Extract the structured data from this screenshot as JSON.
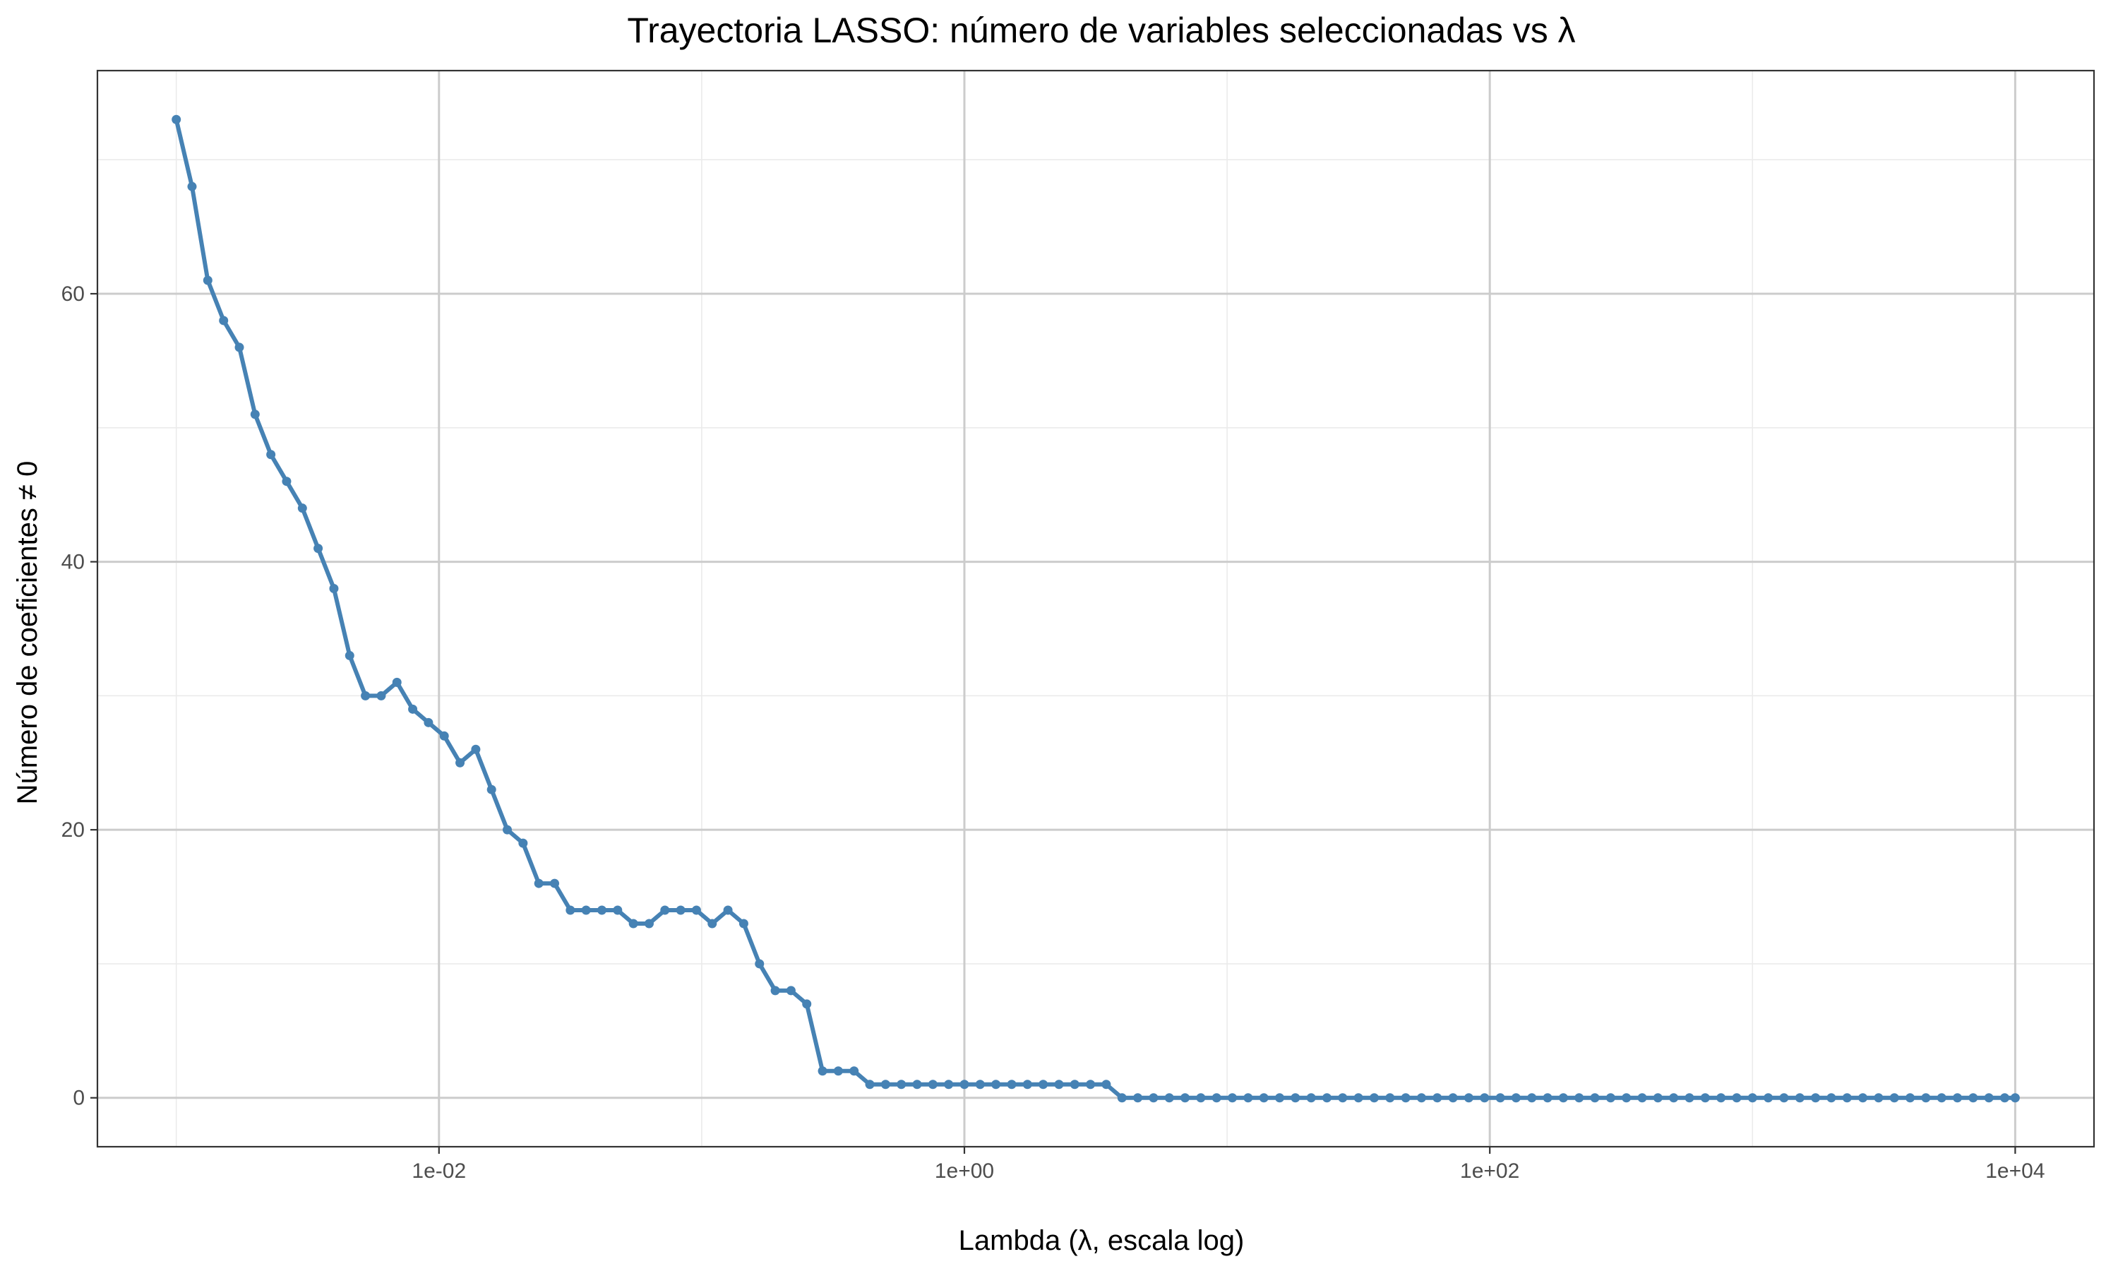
{
  "chart_data": {
    "type": "line",
    "title": "Trayectoria LASSO: número de variables seleccionadas vs λ",
    "xlabel": "Lambda (λ, escala log)",
    "ylabel": "Número de coeficientes ≠ 0",
    "x_scale": "log10",
    "xlim": [
      0.000501,
      19950
    ],
    "ylim": [
      -3.65,
      76.65
    ],
    "x_ticks": [
      0.01,
      1,
      100,
      10000
    ],
    "x_tick_labels": [
      "1e-02",
      "1e+00",
      "1e+02",
      "1e+04"
    ],
    "y_ticks": [
      0,
      20,
      40,
      60
    ],
    "y_tick_labels": [
      "0",
      "20",
      "40",
      "60"
    ],
    "grid": true,
    "legend": "none",
    "colors": {
      "series": "#4682b4",
      "grid_major": "#cccccc",
      "grid_minor": "#ebebeb",
      "border": "#333333"
    },
    "series": [
      {
        "x": [
          0.001,
          0.001148,
          0.001318,
          0.001514,
          0.001738,
          0.001995,
          0.002291,
          0.00263,
          0.00302,
          0.003467,
          0.003981,
          0.004571,
          0.005248,
          0.006026,
          0.006918,
          0.007943,
          0.00912,
          0.010471,
          0.012023,
          0.013804,
          0.015849,
          0.018197,
          0.020893,
          0.023988,
          0.027542,
          0.031623,
          0.036308,
          0.041687,
          0.047863,
          0.054954,
          0.063096,
          0.072444,
          0.083176,
          0.095499,
          0.109648,
          0.125893,
          0.144544,
          0.165959,
          0.190546,
          0.218776,
          0.251189,
          0.288403,
          0.331131,
          0.380189,
          0.436516,
          0.501187,
          0.57544,
          0.660693,
          0.758578,
          0.870964,
          1,
          1.148,
          1.318,
          1.514,
          1.738,
          1.995,
          2.291,
          2.63,
          3.02,
          3.467,
          3.981,
          4.571,
          5.248,
          6.026,
          6.918,
          7.943,
          9.12,
          10.471,
          12.023,
          13.804,
          15.849,
          18.197,
          20.893,
          23.988,
          27.542,
          31.623,
          36.308,
          41.687,
          47.863,
          54.954,
          63.096,
          72.444,
          83.176,
          95.499,
          109.648,
          125.893,
          144.544,
          165.959,
          190.546,
          218.776,
          251.189,
          288.403,
          331.131,
          380.189,
          436.516,
          501.187,
          575.44,
          660.693,
          758.578,
          870.964,
          1000,
          1148,
          1318,
          1514,
          1738,
          1995,
          2291,
          2630,
          3020,
          3467,
          3981,
          4571,
          5248,
          6026,
          6918,
          7943,
          9120,
          10000
        ],
        "y": [
          73,
          68,
          61,
          58,
          56,
          51,
          48,
          46,
          44,
          41,
          38,
          33,
          30,
          30,
          31,
          29,
          28,
          27,
          25,
          26,
          23,
          20,
          19,
          16,
          16,
          14,
          14,
          14,
          14,
          13,
          13,
          14,
          14,
          14,
          13,
          14,
          13,
          10,
          8,
          8,
          7,
          2,
          2,
          2,
          1,
          1,
          1,
          1,
          1,
          1,
          1,
          1,
          1,
          1,
          1,
          1,
          1,
          1,
          1,
          1,
          0,
          0,
          0,
          0,
          0,
          0,
          0,
          0,
          0,
          0,
          0,
          0,
          0,
          0,
          0,
          0,
          0,
          0,
          0,
          0,
          0,
          0,
          0,
          0,
          0,
          0,
          0,
          0,
          0,
          0,
          0,
          0,
          0,
          0,
          0,
          0,
          0,
          0,
          0,
          0,
          0,
          0,
          0,
          0,
          0,
          0,
          0,
          0,
          0,
          0,
          0,
          0,
          0,
          0,
          0,
          0,
          0,
          0
        ]
      }
    ]
  }
}
